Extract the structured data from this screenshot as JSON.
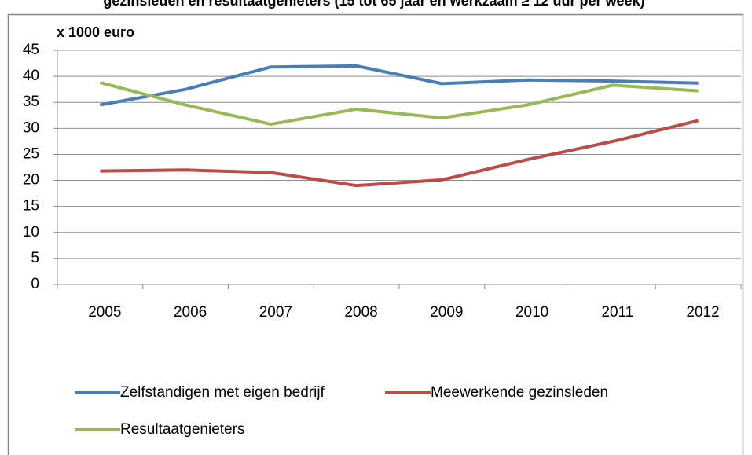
{
  "chart_data": {
    "type": "line",
    "title": "gezinsleden en resultaatgenieters (15 tot 65 jaar en werkzaam ≥ 12 uur per week)",
    "y_label": "x 1000 euro",
    "categories": [
      "2005",
      "2006",
      "2007",
      "2008",
      "2009",
      "2010",
      "2011",
      "2012"
    ],
    "series": [
      {
        "name": "Zelfstandigen met eigen bedrijf",
        "color": "#4a7ebb",
        "values": [
          34.5,
          37.5,
          41.8,
          42.0,
          38.6,
          39.3,
          39.1,
          38.7
        ]
      },
      {
        "name": "Meewerkende gezinsleden",
        "color": "#be4b48",
        "values": [
          21.8,
          22.0,
          21.5,
          19.0,
          20.1,
          24.0,
          27.5,
          31.5
        ]
      },
      {
        "name": "Resultaatgenieters",
        "color": "#98b954",
        "values": [
          38.8,
          34.5,
          30.8,
          33.7,
          32.0,
          34.5,
          38.3,
          37.2
        ]
      }
    ],
    "ylim": [
      0,
      45
    ],
    "yticks": [
      0,
      5,
      10,
      15,
      20,
      25,
      30,
      35,
      40,
      45
    ],
    "grid": true
  }
}
